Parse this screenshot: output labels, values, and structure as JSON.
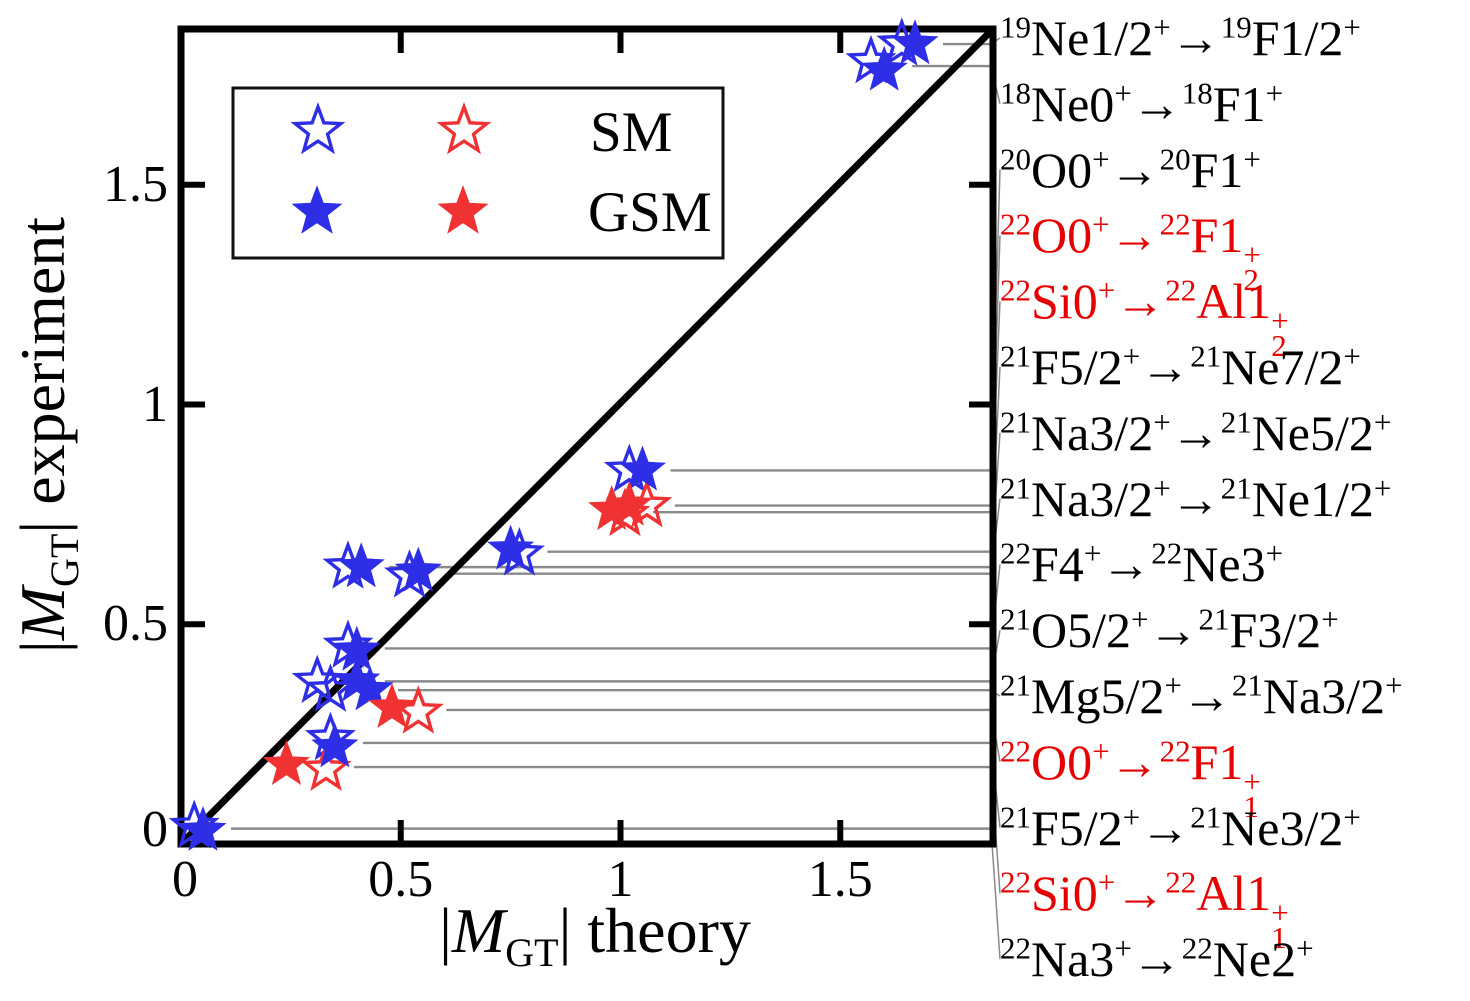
{
  "axes": {
    "bar": "|",
    "m": "M",
    "gt": "GT",
    "x_rest": " theory",
    "y_rest": " experiment"
  },
  "chart_data": {
    "type": "scatter",
    "title": "",
    "xlabel": "|M_GT| theory",
    "ylabel": "|M_GT| experiment",
    "xlim": [
      0,
      1.85
    ],
    "ylim": [
      0,
      1.85
    ],
    "tick_values": [
      0,
      0.5,
      1,
      1.5
    ],
    "tick_labels": [
      "0",
      "0.5",
      "1",
      "1.5"
    ],
    "grid": false,
    "reference_line": "y=x diagonal",
    "legend_position": "upper-left",
    "legend": [
      {
        "label": "SM",
        "marker": "open-star",
        "colors": [
          "#2e2ee6",
          "#f03232"
        ]
      },
      {
        "label": "GSM",
        "marker": "filled-star",
        "colors": [
          "#2e2ee6",
          "#f03232"
        ]
      }
    ],
    "colors": {
      "blue_marker": "#2e2ee6",
      "red_marker": "#f03232",
      "red_label": "#e60000",
      "callout_gray": "#8a8a8a",
      "axis_black": "#000000"
    },
    "transitions": [
      {
        "name": "19Ne1/2+ -> 19F1/2+",
        "label_color": "black",
        "marker_color": "#2e2ee6",
        "sm": {
          "theory": 1.64,
          "exp": 1.82
        },
        "gsm": {
          "theory": 1.67,
          "exp": 1.82
        },
        "tokens": [
          {
            "s": "19"
          },
          {
            "t": "Ne1/2"
          },
          {
            "s": "+"
          },
          {
            "t": "→"
          },
          {
            "s": "19"
          },
          {
            "t": "F1/2"
          },
          {
            "s": "+"
          }
        ]
      },
      {
        "name": "18Ne0+ -> 18F1+",
        "label_color": "black",
        "marker_color": "#2e2ee6",
        "sm": {
          "theory": 1.57,
          "exp": 1.78
        },
        "gsm": {
          "theory": 1.6,
          "exp": 1.76
        },
        "tokens": [
          {
            "s": "18"
          },
          {
            "t": "Ne0"
          },
          {
            "s": "+"
          },
          {
            "t": "→"
          },
          {
            "s": "18"
          },
          {
            "t": "F1"
          },
          {
            "s": "+"
          }
        ]
      },
      {
        "name": "20O0+ -> 20F1+",
        "label_color": "black",
        "marker_color": "#2e2ee6",
        "sm": {
          "theory": 1.02,
          "exp": 0.85
        },
        "gsm": {
          "theory": 1.05,
          "exp": 0.85
        },
        "tokens": [
          {
            "s": "20"
          },
          {
            "t": "O0"
          },
          {
            "s": "+"
          },
          {
            "t": "→"
          },
          {
            "s": "20"
          },
          {
            "t": "F1"
          },
          {
            "s": "+"
          }
        ]
      },
      {
        "name": "22O0+ -> 22F1_2+",
        "label_color": "red",
        "marker_color": "#f03232",
        "sm": {
          "theory": 1.06,
          "exp": 0.77
        },
        "gsm": {
          "theory": 1.02,
          "exp": 0.77
        },
        "tokens": [
          {
            "s": "22"
          },
          {
            "t": "O0"
          },
          {
            "s": "+"
          },
          {
            "t": "→"
          },
          {
            "s": "22"
          },
          {
            "t": "F1"
          },
          {
            "ss": [
              "+",
              "2"
            ]
          }
        ]
      },
      {
        "name": "22Si0+ -> 22Al1_2+",
        "label_color": "red",
        "marker_color": "#f03232",
        "sm": {
          "theory": 1.01,
          "exp": 0.75
        },
        "gsm": {
          "theory": 0.98,
          "exp": 0.76
        },
        "tokens": [
          {
            "s": "22"
          },
          {
            "t": "Si0"
          },
          {
            "s": "+"
          },
          {
            "t": "→"
          },
          {
            "s": "22"
          },
          {
            "t": "Al1"
          },
          {
            "ss": [
              "+",
              "2"
            ]
          }
        ]
      },
      {
        "name": "21F5/2+ -> 21Ne7/2+",
        "label_color": "black",
        "marker_color": "#2e2ee6",
        "sm": {
          "theory": 0.77,
          "exp": 0.66
        },
        "gsm": {
          "theory": 0.75,
          "exp": 0.67
        },
        "tokens": [
          {
            "s": "21"
          },
          {
            "t": "F5/2"
          },
          {
            "s": "+"
          },
          {
            "t": "→"
          },
          {
            "s": "21"
          },
          {
            "t": "Ne7/2"
          },
          {
            "s": "+"
          }
        ]
      },
      {
        "name": "21Na3/2+ -> 21Ne5/2+",
        "label_color": "black",
        "marker_color": "#2e2ee6",
        "sm": {
          "theory": 0.38,
          "exp": 0.63
        },
        "gsm": {
          "theory": 0.41,
          "exp": 0.63
        },
        "tokens": [
          {
            "s": "21"
          },
          {
            "t": "Na3/2"
          },
          {
            "s": "+"
          },
          {
            "t": "→"
          },
          {
            "s": "21"
          },
          {
            "t": "Ne5/2"
          },
          {
            "s": "+"
          }
        ]
      },
      {
        "name": "21Na3/2+ -> 21Ne1/2+",
        "label_color": "black",
        "marker_color": "#2e2ee6",
        "sm": {
          "theory": 0.52,
          "exp": 0.61
        },
        "gsm": {
          "theory": 0.54,
          "exp": 0.62
        },
        "tokens": [
          {
            "s": "21"
          },
          {
            "t": "Na3/2"
          },
          {
            "s": "+"
          },
          {
            "t": "→"
          },
          {
            "s": "21"
          },
          {
            "t": "Ne1/2"
          },
          {
            "s": "+"
          }
        ]
      },
      {
        "name": "22F4+ -> 22Ne3+",
        "label_color": "black",
        "marker_color": "#2e2ee6",
        "sm": {
          "theory": 0.38,
          "exp": 0.45
        },
        "gsm": {
          "theory": 0.4,
          "exp": 0.44
        },
        "tokens": [
          {
            "s": "22"
          },
          {
            "t": "F4"
          },
          {
            "s": "+"
          },
          {
            "t": "→"
          },
          {
            "s": "22"
          },
          {
            "t": "Ne3"
          },
          {
            "s": "+"
          }
        ]
      },
      {
        "name": "21O5/2+ -> 21F3/2+",
        "label_color": "black",
        "marker_color": "#2e2ee6",
        "sm": {
          "theory": 0.31,
          "exp": 0.37
        },
        "gsm": {
          "theory": 0.4,
          "exp": 0.37
        },
        "tokens": [
          {
            "s": "21"
          },
          {
            "t": "O5/2"
          },
          {
            "s": "+"
          },
          {
            "t": "→"
          },
          {
            "s": "21"
          },
          {
            "t": "F3/2"
          },
          {
            "s": "+"
          }
        ]
      },
      {
        "name": "21Mg5/2+ -> 21Na3/2+",
        "label_color": "black",
        "marker_color": "#2e2ee6",
        "sm": {
          "theory": 0.34,
          "exp": 0.35
        },
        "gsm": {
          "theory": 0.43,
          "exp": 0.35
        },
        "tokens": [
          {
            "s": "21"
          },
          {
            "t": "Mg5/2"
          },
          {
            "s": "+"
          },
          {
            "t": "→"
          },
          {
            "s": "21"
          },
          {
            "t": "Na3/2"
          },
          {
            "s": "+"
          }
        ]
      },
      {
        "name": "22O0+ -> 22F1_1+",
        "label_color": "red",
        "marker_color": "#f03232",
        "sm": {
          "theory": 0.54,
          "exp": 0.3
        },
        "gsm": {
          "theory": 0.48,
          "exp": 0.31
        },
        "tokens": [
          {
            "s": "22"
          },
          {
            "t": "O0"
          },
          {
            "s": "+"
          },
          {
            "t": "→"
          },
          {
            "s": "22"
          },
          {
            "t": "F1"
          },
          {
            "ss": [
              "+",
              "1"
            ]
          }
        ]
      },
      {
        "name": "21F5/2+ -> 21Ne3/2+",
        "label_color": "black",
        "marker_color": "#2e2ee6",
        "sm": {
          "theory": 0.34,
          "exp": 0.24
        },
        "gsm": {
          "theory": 0.35,
          "exp": 0.22
        },
        "tokens": [
          {
            "s": "21"
          },
          {
            "t": "F5/2"
          },
          {
            "s": "+"
          },
          {
            "t": "→"
          },
          {
            "s": "21"
          },
          {
            "t": "Ne3/2"
          },
          {
            "s": "+"
          }
        ]
      },
      {
        "name": "22Si0+ -> 22Al1_1+",
        "label_color": "red",
        "marker_color": "#f03232",
        "sm": {
          "theory": 0.33,
          "exp": 0.17
        },
        "gsm": {
          "theory": 0.24,
          "exp": 0.18
        },
        "tokens": [
          {
            "s": "22"
          },
          {
            "t": "Si0"
          },
          {
            "s": "+"
          },
          {
            "t": "→"
          },
          {
            "s": "22"
          },
          {
            "t": "Al1"
          },
          {
            "ss": [
              "+",
              "1"
            ]
          }
        ]
      },
      {
        "name": "22Na3+ -> 22Ne2+",
        "label_color": "black",
        "marker_color": "#2e2ee6",
        "sm": {
          "theory": 0.03,
          "exp": 0.04
        },
        "gsm": {
          "theory": 0.05,
          "exp": 0.03
        },
        "tokens": [
          {
            "s": "22"
          },
          {
            "t": "Na3"
          },
          {
            "s": "+"
          },
          {
            "t": "→"
          },
          {
            "s": "22"
          },
          {
            "t": "Ne2"
          },
          {
            "s": "+"
          }
        ]
      }
    ]
  }
}
